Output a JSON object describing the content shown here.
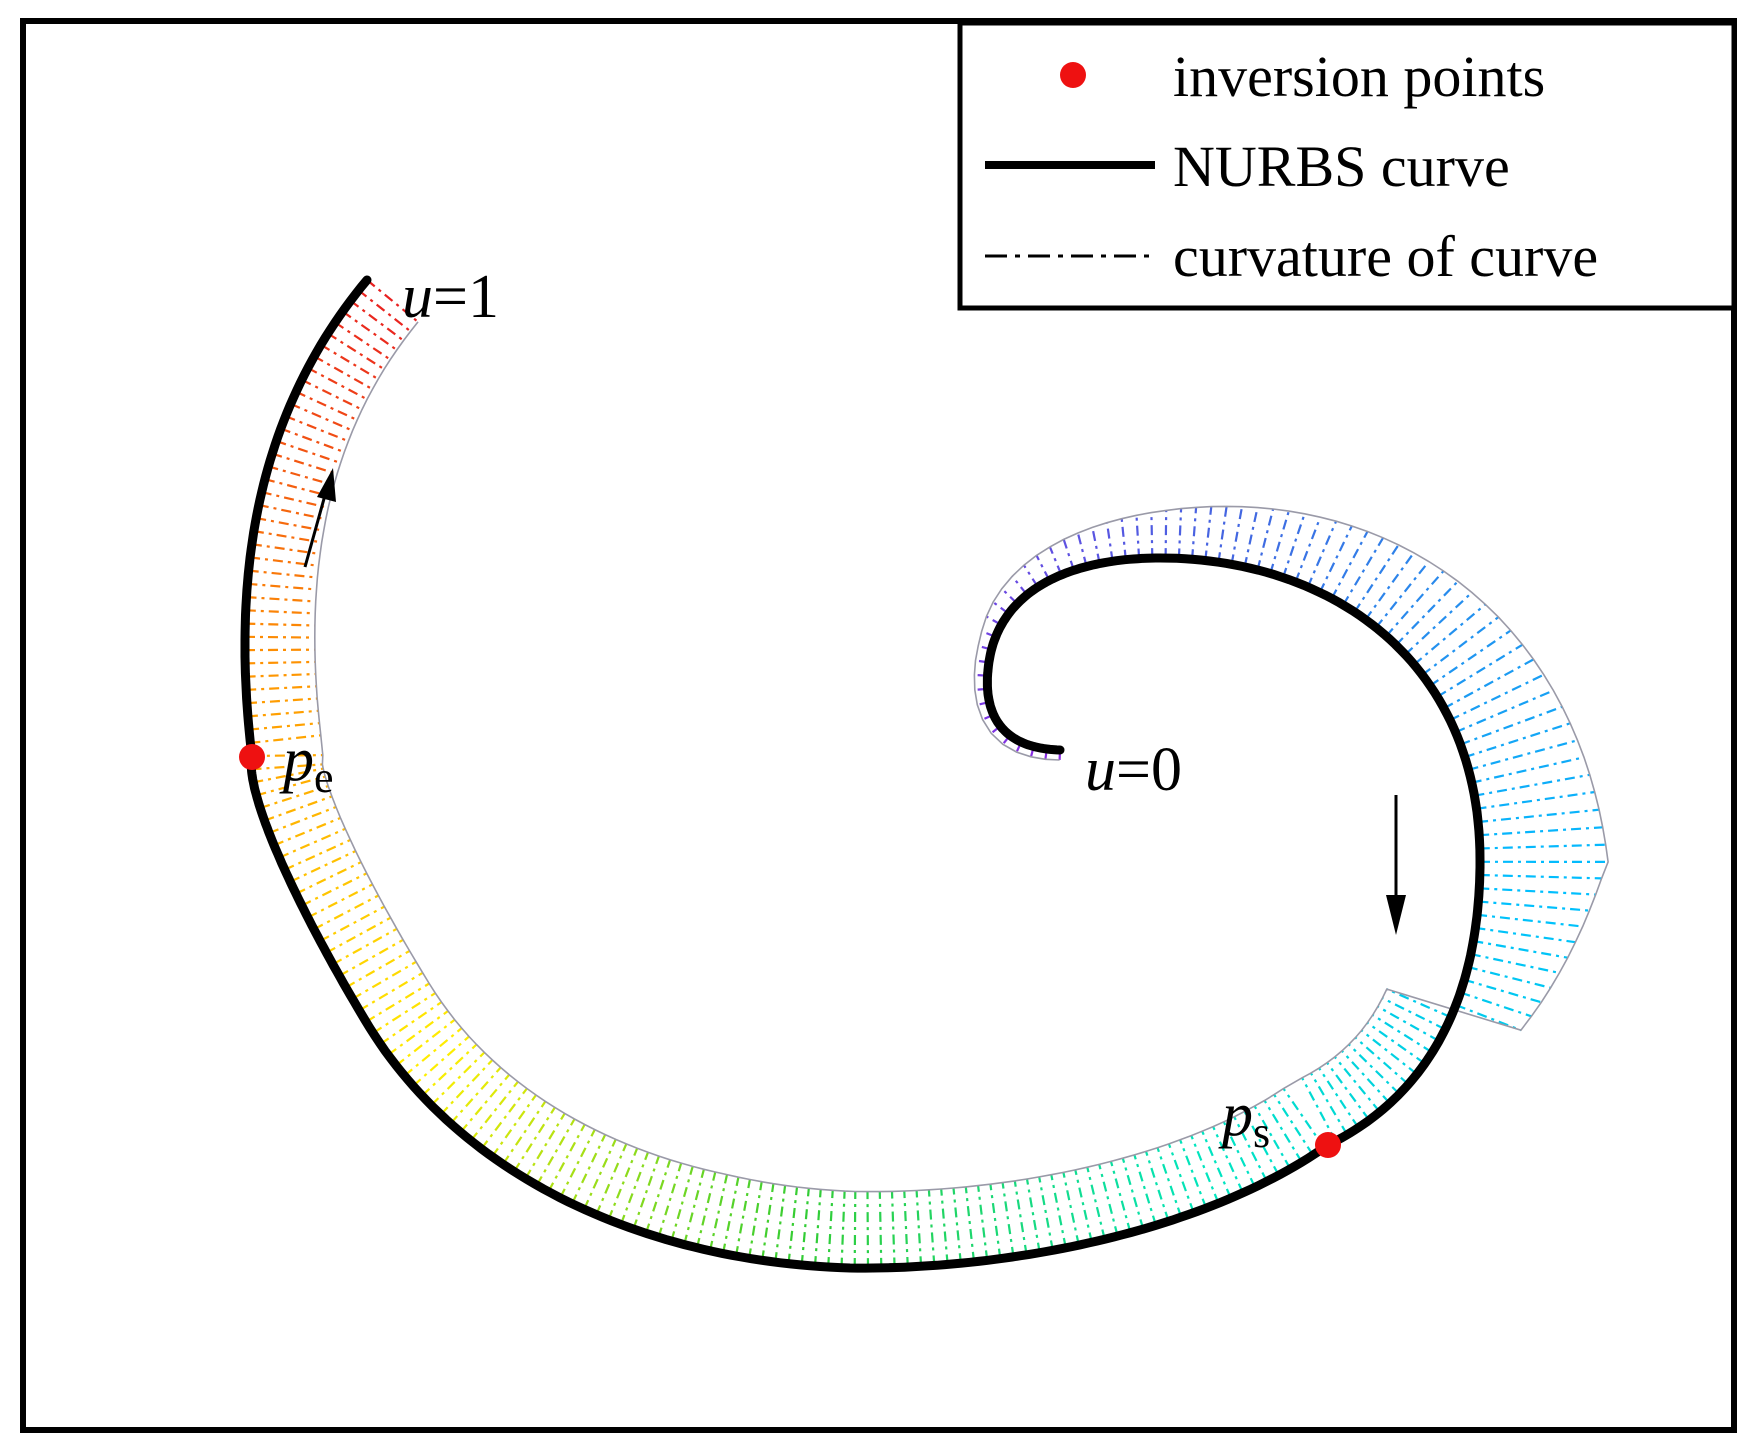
{
  "legend": {
    "items": [
      {
        "label": "inversion points",
        "marker": "dot",
        "color": "#ee1111"
      },
      {
        "label": "NURBS curve",
        "marker": "solid-line",
        "color": "#000000"
      },
      {
        "label": "curvature of curve",
        "marker": "dash-dot-line",
        "color": "#000000"
      }
    ]
  },
  "labels": {
    "u_start": {
      "var": "u",
      "rest": "=0"
    },
    "u_end": {
      "var": "u",
      "rest": "=1"
    },
    "p_e": {
      "var": "p",
      "sub": "e"
    },
    "p_s": {
      "var": "p",
      "sub": "s"
    }
  },
  "colors": {
    "curve": "#000000",
    "inversion_point": "#ee1111",
    "comb_gradient": [
      "#8a2be2",
      "#4169e1",
      "#00bfff",
      "#00e5c0",
      "#33cc33",
      "#ffee00",
      "#ff9900",
      "#e82020"
    ]
  },
  "icons": [
    "direction-arrow-up-icon",
    "direction-arrow-down-icon"
  ]
}
